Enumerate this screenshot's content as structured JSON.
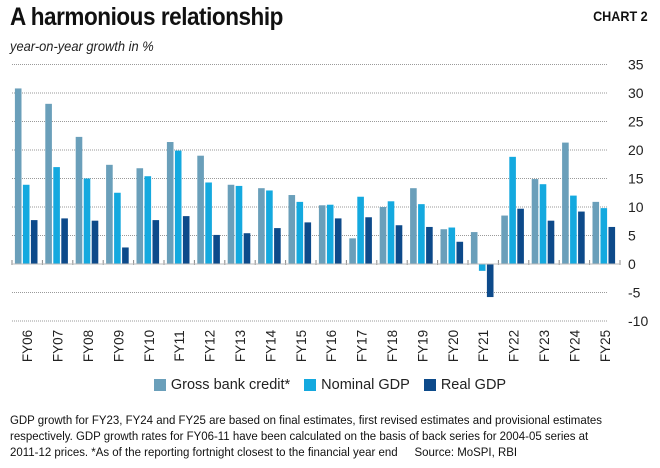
{
  "header": {
    "title": "A harmonious relationship",
    "chart_label": "CHART 2",
    "subtitle": "year-on-year growth in %"
  },
  "chart_data": {
    "type": "bar",
    "title": "A harmonious relationship",
    "subtitle": "year-on-year growth in %",
    "xlabel": "",
    "ylabel": "year-on-year growth in %",
    "ylim": [
      -10,
      35
    ],
    "yticks": [
      35,
      30,
      25,
      20,
      15,
      10,
      5,
      0,
      -5,
      -10
    ],
    "grid": true,
    "y_axis_position": "right",
    "legend_position": "bottom",
    "categories": [
      "FY06",
      "FY07",
      "FY08",
      "FY09",
      "FY10",
      "FY11",
      "FY12",
      "FY13",
      "FY14",
      "FY15",
      "FY16",
      "FY17",
      "FY18",
      "FY19",
      "FY20",
      "FY21",
      "FY22",
      "FY23",
      "FY24",
      "FY25"
    ],
    "series": [
      {
        "name": "Gross bank credit*",
        "color": "#6a9fba",
        "values": [
          30.8,
          28.1,
          22.3,
          17.4,
          16.8,
          21.4,
          19.0,
          13.9,
          13.3,
          12.1,
          10.3,
          4.5,
          10.0,
          13.3,
          6.1,
          5.6,
          8.5,
          14.9,
          21.3,
          10.9
        ]
      },
      {
        "name": "Nominal GDP",
        "color": "#14a9df",
        "values": [
          13.9,
          17.0,
          15.0,
          12.5,
          15.4,
          19.9,
          14.3,
          13.7,
          12.9,
          10.9,
          10.4,
          11.8,
          11.0,
          10.5,
          6.4,
          -1.2,
          18.8,
          14.0,
          12.0,
          9.8
        ]
      },
      {
        "name": "Real GDP",
        "color": "#0d4a8a",
        "values": [
          7.7,
          8.0,
          7.6,
          2.9,
          7.7,
          8.4,
          5.1,
          5.4,
          6.3,
          7.3,
          8.0,
          8.2,
          6.8,
          6.5,
          3.9,
          -5.8,
          9.7,
          7.6,
          9.2,
          6.5
        ]
      }
    ]
  },
  "legend": {
    "items": [
      {
        "label": "Gross bank credit*",
        "color": "#6a9fba"
      },
      {
        "label": "Nominal GDP",
        "color": "#14a9df"
      },
      {
        "label": "Real GDP",
        "color": "#0d4a8a"
      }
    ]
  },
  "footnote": {
    "line1": "GDP growth for FY23, FY24 and FY25 are based on final estimates, first revised estimates and provisional estimates",
    "line2": "respectively. GDP growth rates for FY06-11 have been calculated on the basis of back series for 2004-05 series at",
    "line3": "2011-12 prices.   *As of the reporting fortnight closest to the financial year end",
    "source": "Source: MoSPI, RBI"
  }
}
